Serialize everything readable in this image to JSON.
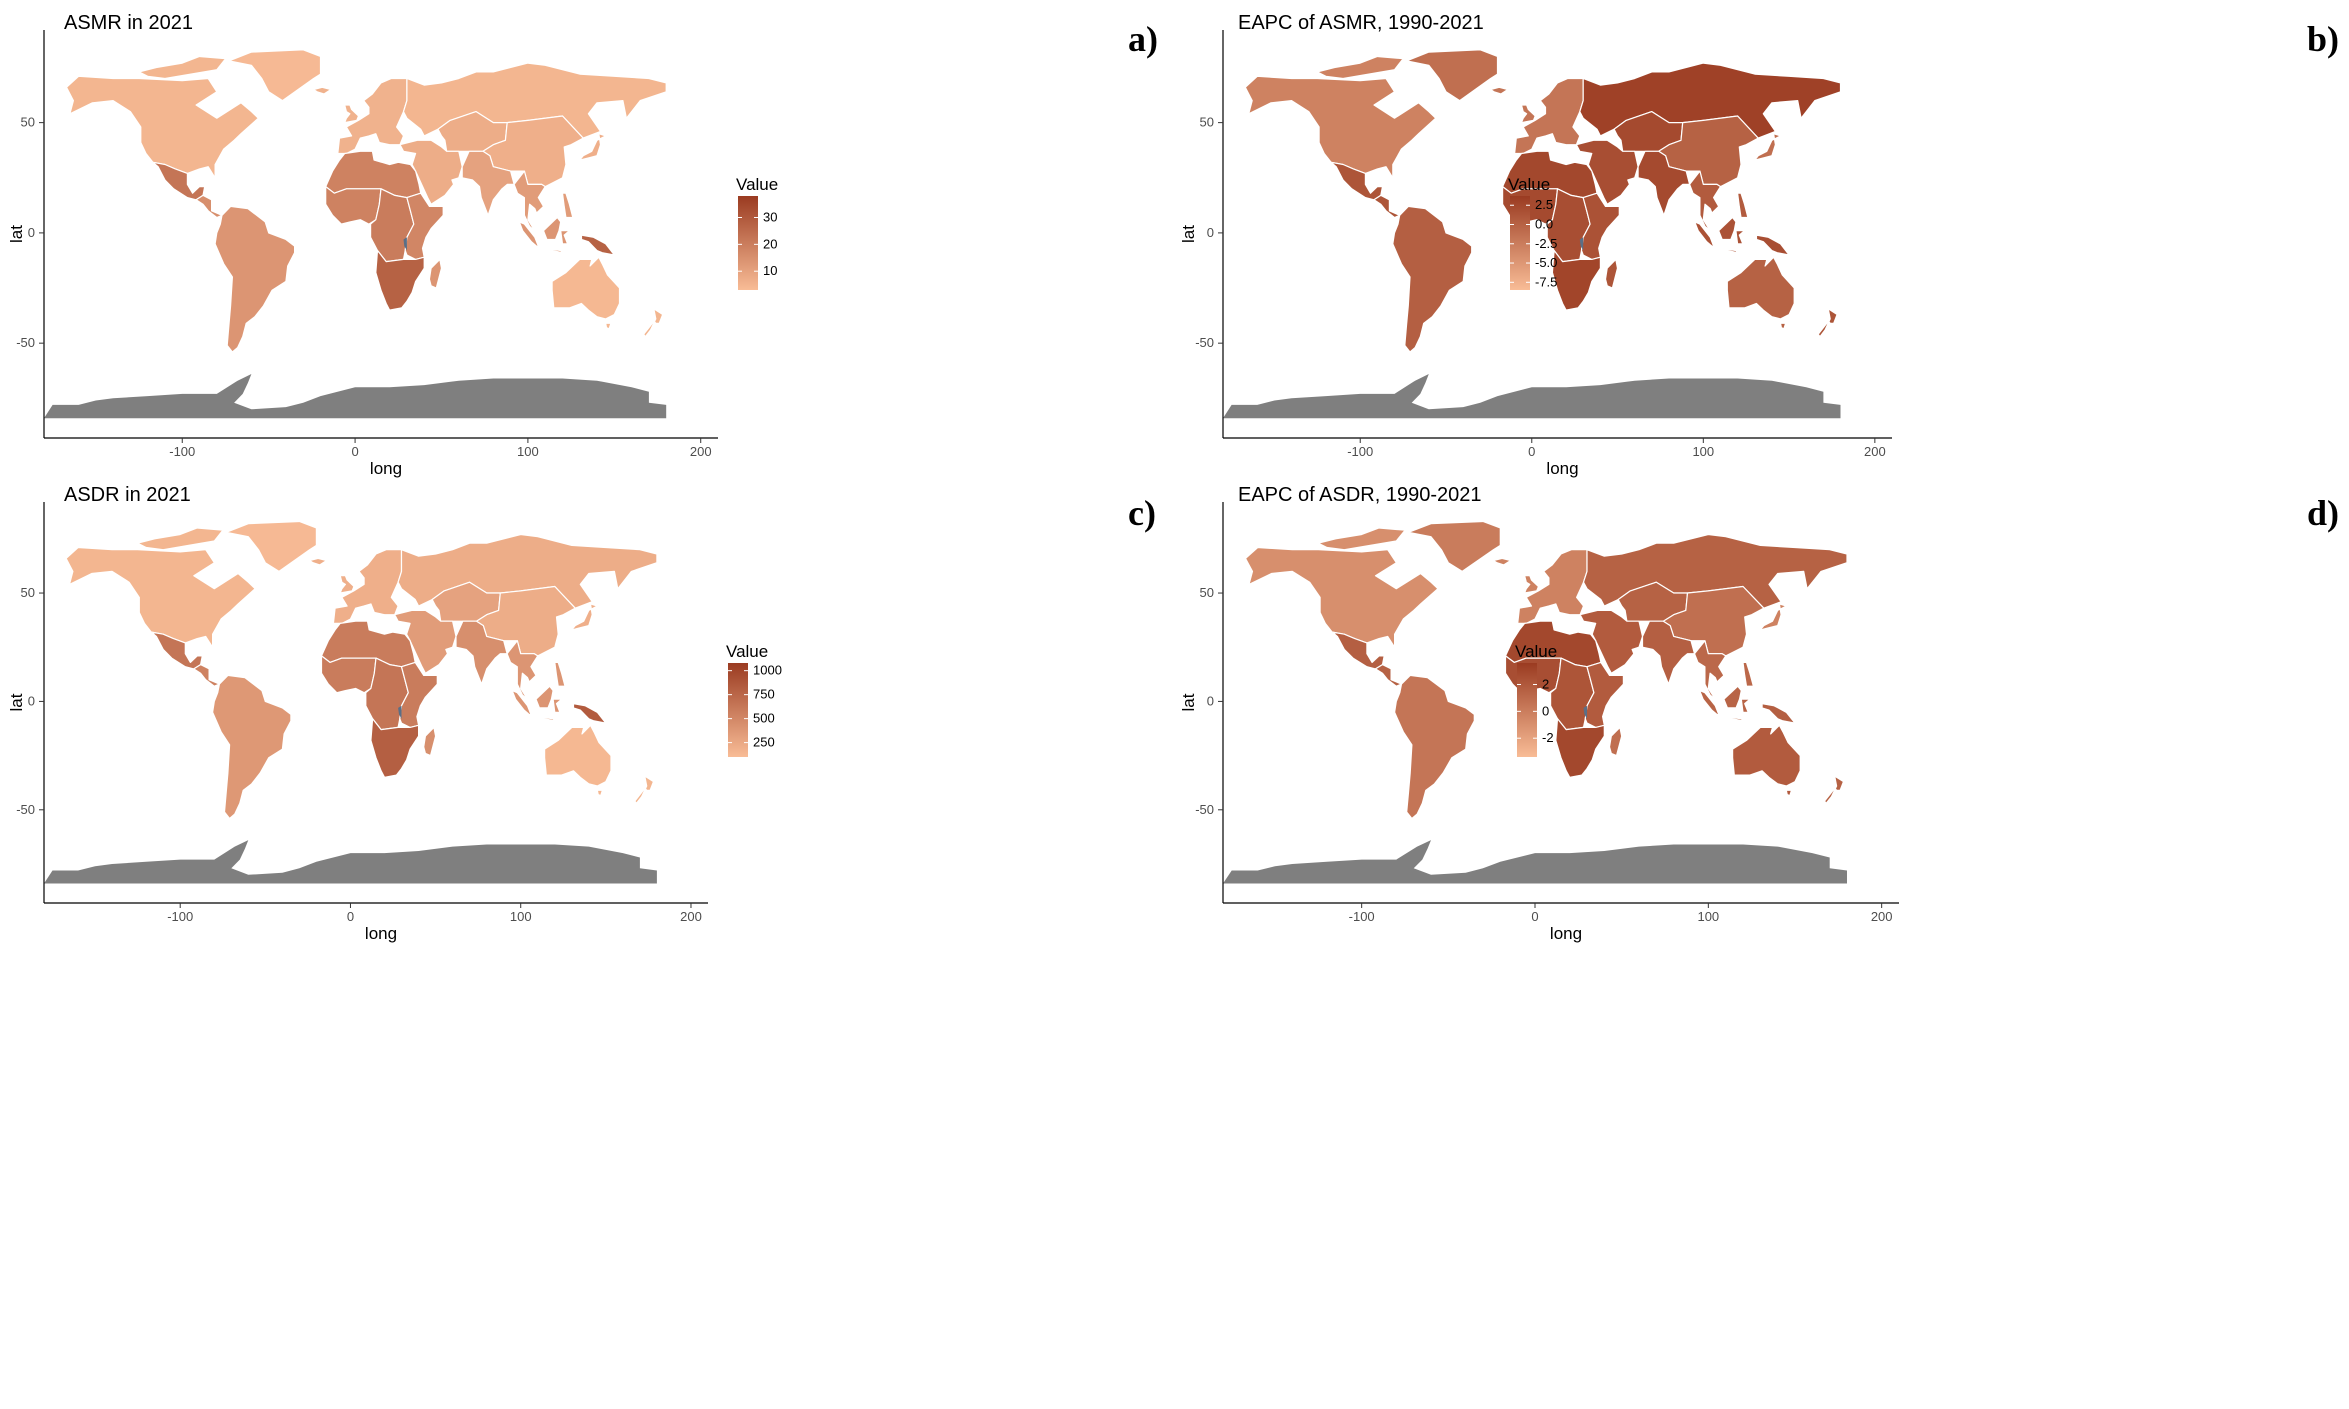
{
  "figure": {
    "axis_labels": {
      "x": "long",
      "y": "lat"
    },
    "x_ticks": [
      -100,
      0,
      100,
      200
    ],
    "y_ticks": [
      50,
      0,
      -50
    ],
    "xlim": [
      -180,
      210
    ],
    "ylim": [
      -93,
      92
    ],
    "antarctica_color": "#7f7f7f",
    "border_color": "#ffffff",
    "lake_color": "#5a6f87"
  },
  "panels": [
    {
      "id": "a",
      "title": "ASMR in 2021",
      "label": "a)",
      "legend": {
        "title": "Value",
        "ticks": [
          "30",
          "20",
          "10"
        ],
        "tick_values": [
          30,
          20,
          10
        ],
        "range": [
          3,
          38
        ],
        "low_color": "#f8bc96",
        "high_color": "#9a3b21"
      },
      "regions": {
        "north_america": 0.05,
        "greenland": 0.02,
        "mexico": 0.55,
        "central_america": 0.35,
        "south_america": 0.3,
        "europe": 0.08,
        "russia": 0.05,
        "middle_east": 0.12,
        "central_asia": 0.12,
        "china": 0.1,
        "india": 0.2,
        "se_asia": 0.25,
        "north_africa": 0.45,
        "west_africa": 0.45,
        "central_africa": 0.5,
        "east_africa": 0.42,
        "southern_africa": 0.7,
        "madagascar": 0.3,
        "australia": 0.03,
        "new_zealand": 0.05,
        "indonesia": 0.3,
        "papua": 0.7,
        "japan": 0.1
      }
    },
    {
      "id": "b",
      "title": "EAPC of ASMR, 1990-2021",
      "label": "b)",
      "legend": {
        "title": "Value",
        "ticks": [
          "2.5",
          "0.0",
          "-2.5",
          "-5.0",
          "-7.5"
        ],
        "tick_values": [
          2.5,
          0.0,
          -2.5,
          -5.0,
          -7.5
        ],
        "range": [
          -8.5,
          3.7
        ],
        "low_color": "#f8bc96",
        "high_color": "#9a3b21"
      },
      "regions": {
        "north_america": 0.45,
        "greenland": 0.6,
        "mexico": 0.8,
        "central_america": 0.8,
        "south_america": 0.72,
        "europe": 0.55,
        "russia": 0.95,
        "middle_east": 0.85,
        "central_asia": 0.88,
        "china": 0.7,
        "india": 0.88,
        "se_asia": 0.75,
        "north_africa": 0.9,
        "west_africa": 0.88,
        "central_africa": 0.85,
        "east_africa": 0.82,
        "southern_africa": 0.92,
        "madagascar": 0.8,
        "australia": 0.7,
        "new_zealand": 0.8,
        "indonesia": 0.82,
        "papua": 0.85,
        "japan": 0.6
      }
    },
    {
      "id": "c",
      "title": "ASDR in 2021",
      "label": "c)",
      "legend": {
        "title": "Value",
        "ticks": [
          "1000",
          "750",
          "500",
          "250"
        ],
        "tick_values": [
          1000,
          750,
          500,
          250
        ],
        "range": [
          100,
          1080
        ],
        "low_color": "#f8bc96",
        "high_color": "#9a3b21"
      },
      "regions": {
        "north_america": 0.05,
        "greenland": 0.02,
        "mexico": 0.55,
        "central_america": 0.45,
        "south_america": 0.28,
        "europe": 0.1,
        "russia": 0.12,
        "middle_east": 0.25,
        "central_asia": 0.2,
        "china": 0.12,
        "india": 0.35,
        "se_asia": 0.3,
        "north_africa": 0.5,
        "west_africa": 0.5,
        "central_africa": 0.55,
        "east_africa": 0.5,
        "southern_africa": 0.72,
        "madagascar": 0.35,
        "australia": 0.03,
        "new_zealand": 0.05,
        "indonesia": 0.3,
        "papua": 0.75,
        "japan": 0.1
      }
    },
    {
      "id": "d",
      "title": "EAPC of ASDR, 1990-2021",
      "label": "d)",
      "legend": {
        "title": "Value",
        "ticks": [
          "2",
          "0",
          "-2"
        ],
        "tick_values": [
          2,
          0,
          -2
        ],
        "range": [
          -3.4,
          3.6
        ],
        "low_color": "#f8bc96",
        "high_color": "#9a3b21"
      },
      "regions": {
        "north_america": 0.35,
        "greenland": 0.5,
        "mexico": 0.72,
        "central_america": 0.7,
        "south_america": 0.55,
        "europe": 0.45,
        "russia": 0.7,
        "middle_east": 0.75,
        "central_asia": 0.7,
        "china": 0.6,
        "india": 0.72,
        "se_asia": 0.65,
        "north_africa": 0.9,
        "west_africa": 0.85,
        "central_africa": 0.8,
        "east_africa": 0.75,
        "southern_africa": 0.9,
        "madagascar": 0.6,
        "australia": 0.75,
        "new_zealand": 0.7,
        "indonesia": 0.68,
        "papua": 0.72,
        "japan": 0.45
      }
    }
  ]
}
